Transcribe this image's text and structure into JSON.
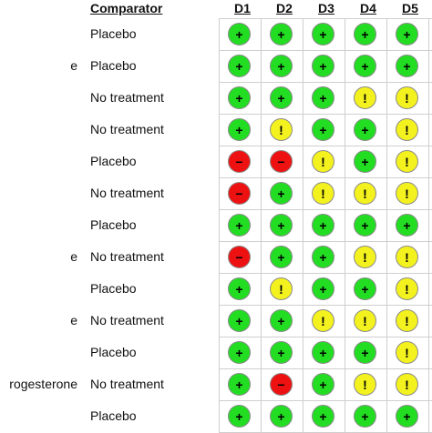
{
  "header": {
    "comparator": "Comparator",
    "domains": [
      "D1",
      "D2",
      "D3",
      "D4",
      "D5"
    ]
  },
  "colors": {
    "low": "#22dd22",
    "some_concerns": "#f4f21e",
    "high": "#ee1111"
  },
  "rows": [
    {
      "intervention": "",
      "comparator": "Placebo",
      "judgements": [
        "+",
        "+",
        "+",
        "+",
        "+"
      ]
    },
    {
      "intervention": "e",
      "comparator": "Placebo",
      "judgements": [
        "+",
        "+",
        "+",
        "+",
        "+"
      ]
    },
    {
      "intervention": "",
      "comparator": "No treatment",
      "judgements": [
        "+",
        "+",
        "+",
        "!",
        "!"
      ]
    },
    {
      "intervention": "",
      "comparator": "No treatment",
      "judgements": [
        "+",
        "!",
        "+",
        "+",
        "!"
      ]
    },
    {
      "intervention": "",
      "comparator": "Placebo",
      "judgements": [
        "-",
        "-",
        "!",
        "+",
        "!"
      ]
    },
    {
      "intervention": "",
      "comparator": "No treatment",
      "judgements": [
        "-",
        "+",
        "!",
        "!",
        "!"
      ]
    },
    {
      "intervention": "",
      "comparator": "Placebo",
      "judgements": [
        "+",
        "+",
        "+",
        "+",
        "+"
      ]
    },
    {
      "intervention": "e",
      "comparator": "No treatment",
      "judgements": [
        "-",
        "+",
        "+",
        "!",
        "!"
      ]
    },
    {
      "intervention": "",
      "comparator": "Placebo",
      "judgements": [
        "+",
        "!",
        "+",
        "+",
        "!"
      ]
    },
    {
      "intervention": "e",
      "comparator": "No treatment",
      "judgements": [
        "+",
        "+",
        "!",
        "!",
        "!"
      ]
    },
    {
      "intervention": "",
      "comparator": "Placebo",
      "judgements": [
        "+",
        "+",
        "+",
        "+",
        "!"
      ]
    },
    {
      "intervention": "rogesterone",
      "comparator": "No treatment",
      "judgements": [
        "+",
        "-",
        "+",
        "!",
        "!"
      ]
    },
    {
      "intervention": "",
      "comparator": "Placebo",
      "judgements": [
        "+",
        "+",
        "+",
        "+",
        "+"
      ]
    }
  ]
}
